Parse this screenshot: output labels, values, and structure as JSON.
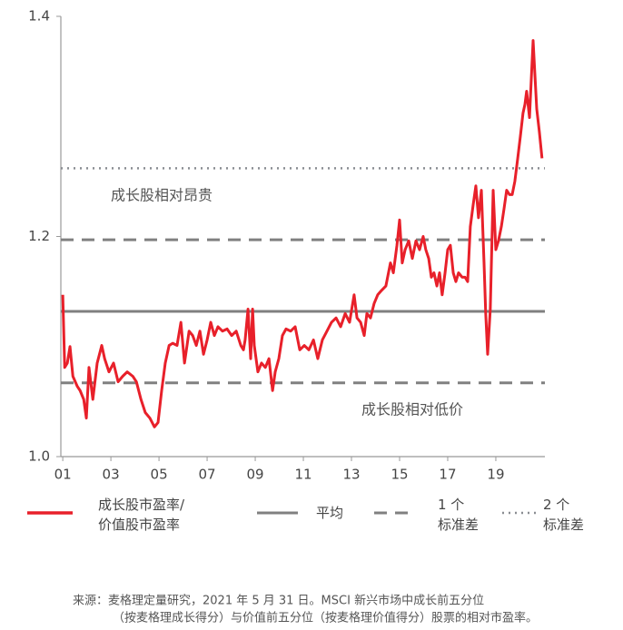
{
  "chart_data": {
    "type": "line",
    "x": [
      2001.0,
      2001.08,
      2001.19,
      2001.3,
      2001.42,
      2001.6,
      2001.72,
      2001.87,
      2001.98,
      2002.09,
      2002.25,
      2002.43,
      2002.62,
      2002.74,
      2002.92,
      2003.11,
      2003.3,
      2003.49,
      2003.68,
      2003.91,
      2004.06,
      2004.25,
      2004.43,
      2004.62,
      2004.81,
      2004.96,
      2005.11,
      2005.26,
      2005.42,
      2005.57,
      2005.75,
      2005.91,
      2006.06,
      2006.25,
      2006.4,
      2006.55,
      2006.7,
      2006.85,
      2007.0,
      2007.15,
      2007.3,
      2007.45,
      2007.64,
      2007.83,
      2008.02,
      2008.21,
      2008.4,
      2008.51,
      2008.58,
      2008.7,
      2008.81,
      2008.89,
      2008.96,
      2009.11,
      2009.26,
      2009.42,
      2009.57,
      2009.72,
      2009.83,
      2009.98,
      2010.13,
      2010.28,
      2010.47,
      2010.66,
      2010.85,
      2011.04,
      2011.23,
      2011.42,
      2011.6,
      2011.79,
      2011.98,
      2012.17,
      2012.36,
      2012.55,
      2012.74,
      2012.92,
      2013.11,
      2013.23,
      2013.38,
      2013.53,
      2013.64,
      2013.79,
      2013.94,
      2014.09,
      2014.25,
      2014.43,
      2014.62,
      2014.74,
      2014.89,
      2015.0,
      2015.11,
      2015.23,
      2015.38,
      2015.53,
      2015.68,
      2015.83,
      2015.98,
      2016.09,
      2016.21,
      2016.32,
      2016.43,
      2016.55,
      2016.66,
      2016.77,
      2016.89,
      2017.0,
      2017.11,
      2017.23,
      2017.34,
      2017.45,
      2017.6,
      2017.72,
      2017.83,
      2017.94,
      2018.06,
      2018.17,
      2018.28,
      2018.4,
      2018.51,
      2018.58,
      2018.66,
      2018.77,
      2018.89,
      2019.0,
      2019.11,
      2019.23,
      2019.34,
      2019.45,
      2019.57,
      2019.68,
      2019.79,
      2019.91,
      2020.02,
      2020.13,
      2020.21,
      2020.28,
      2020.4,
      2020.47,
      2020.55,
      2020.62,
      2020.7,
      2020.81,
      2020.92
    ],
    "series": [
      {
        "name": [
          "成长股市盈率/",
          "价值股市盈率"
        ],
        "color": "#e8202a",
        "values": [
          1.147,
          1.081,
          1.085,
          1.1,
          1.073,
          1.064,
          1.06,
          1.052,
          1.035,
          1.081,
          1.052,
          1.085,
          1.101,
          1.089,
          1.077,
          1.085,
          1.068,
          1.073,
          1.077,
          1.073,
          1.068,
          1.052,
          1.04,
          1.035,
          1.027,
          1.031,
          1.06,
          1.085,
          1.101,
          1.103,
          1.101,
          1.122,
          1.085,
          1.114,
          1.11,
          1.101,
          1.114,
          1.093,
          1.106,
          1.122,
          1.11,
          1.118,
          1.114,
          1.116,
          1.11,
          1.114,
          1.101,
          1.097,
          1.106,
          1.134,
          1.089,
          1.134,
          1.101,
          1.077,
          1.085,
          1.081,
          1.089,
          1.06,
          1.077,
          1.089,
          1.11,
          1.116,
          1.114,
          1.118,
          1.097,
          1.101,
          1.097,
          1.106,
          1.089,
          1.106,
          1.114,
          1.122,
          1.126,
          1.118,
          1.13,
          1.122,
          1.147,
          1.126,
          1.122,
          1.11,
          1.13,
          1.126,
          1.139,
          1.147,
          1.151,
          1.155,
          1.176,
          1.167,
          1.192,
          1.215,
          1.176,
          1.188,
          1.196,
          1.18,
          1.196,
          1.188,
          1.2,
          1.188,
          1.18,
          1.163,
          1.167,
          1.155,
          1.167,
          1.147,
          1.167,
          1.188,
          1.192,
          1.167,
          1.159,
          1.167,
          1.163,
          1.163,
          1.159,
          1.209,
          1.229,
          1.246,
          1.217,
          1.242,
          1.176,
          1.13,
          1.093,
          1.134,
          1.242,
          1.188,
          1.196,
          1.209,
          1.225,
          1.242,
          1.238,
          1.238,
          1.25,
          1.271,
          1.291,
          1.312,
          1.32,
          1.332,
          1.308,
          1.341,
          1.378,
          1.349,
          1.316,
          1.295,
          1.271
        ]
      }
    ],
    "reference_lines": [
      {
        "name": [
          "平均"
        ],
        "style": "solid",
        "color": "#808080",
        "values": [
          1.132
        ]
      },
      {
        "name": [
          "1 个",
          "标准差"
        ],
        "style": "dashed",
        "color": "#808080",
        "values": [
          1.197,
          1.067
        ]
      },
      {
        "name": [
          "2 个",
          "标准差"
        ],
        "style": "dotted",
        "color": "#8a8d92",
        "values": [
          1.262
        ]
      }
    ],
    "annotations": [
      "成长股相对昂贵",
      "成长股相对低价"
    ],
    "xlim": [
      2000.92,
      2021.04
    ],
    "xticks": [
      {
        "value": 2001,
        "label": "01"
      },
      {
        "value": 2003,
        "label": "03"
      },
      {
        "value": 2005,
        "label": "05"
      },
      {
        "value": 2007,
        "label": "07"
      },
      {
        "value": 2009,
        "label": "09"
      },
      {
        "value": 2011,
        "label": "11"
      },
      {
        "value": 2013,
        "label": "13"
      },
      {
        "value": 2015,
        "label": "15"
      },
      {
        "value": 2017,
        "label": "17"
      },
      {
        "value": 2019,
        "label": "19"
      }
    ],
    "ylim": [
      1.0,
      1.4
    ],
    "yticks": [
      {
        "value": 1,
        "label": "1.0"
      },
      1.2,
      1.4
    ],
    "source": [
      "来源：麦格理定量研究，2021 年 5 月 31 日。MSCI 新兴市场中成长前五分位",
      "（按麦格理成长得分）与价值前五分位（按麦格理价值得分）股票的相对市盈率。"
    ]
  }
}
